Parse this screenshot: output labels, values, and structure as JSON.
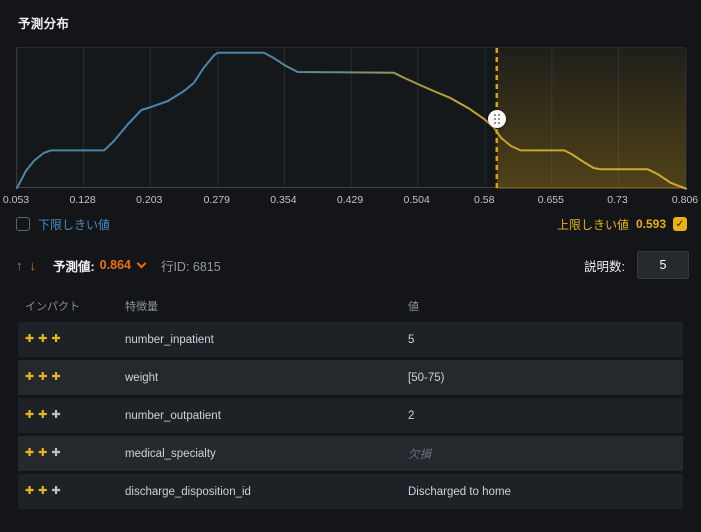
{
  "panel": {
    "title": "予測分布"
  },
  "chart_data": {
    "type": "area",
    "title": "予測分布",
    "xlabel": "",
    "ylabel": "",
    "xlim": [
      0.053,
      0.806
    ],
    "grid": true,
    "tick_labels": [
      "0.053",
      "0.128",
      "0.203",
      "0.279",
      "0.354",
      "0.429",
      "0.504",
      "0.58",
      "0.655",
      "0.73",
      "0.806"
    ],
    "ticks": [
      0.053,
      0.128,
      0.203,
      0.279,
      0.354,
      0.429,
      0.504,
      0.58,
      0.655,
      0.73,
      0.806
    ],
    "upper_threshold": 0.593,
    "points": [
      [
        0.053,
        0.007
      ],
      [
        0.063,
        0.128
      ],
      [
        0.072,
        0.199
      ],
      [
        0.083,
        0.255
      ],
      [
        0.091,
        0.274
      ],
      [
        0.151,
        0.274
      ],
      [
        0.162,
        0.34
      ],
      [
        0.178,
        0.461
      ],
      [
        0.193,
        0.56
      ],
      [
        0.204,
        0.582
      ],
      [
        0.223,
        0.624
      ],
      [
        0.241,
        0.695
      ],
      [
        0.252,
        0.752
      ],
      [
        0.263,
        0.858
      ],
      [
        0.275,
        0.95
      ],
      [
        0.279,
        0.967
      ],
      [
        0.331,
        0.967
      ],
      [
        0.342,
        0.929
      ],
      [
        0.354,
        0.879
      ],
      [
        0.369,
        0.83
      ],
      [
        0.477,
        0.825
      ],
      [
        0.489,
        0.787
      ],
      [
        0.504,
        0.745
      ],
      [
        0.522,
        0.695
      ],
      [
        0.541,
        0.645
      ],
      [
        0.561,
        0.574
      ],
      [
        0.579,
        0.496
      ],
      [
        0.59,
        0.433
      ],
      [
        0.598,
        0.362
      ],
      [
        0.609,
        0.305
      ],
      [
        0.62,
        0.274
      ],
      [
        0.669,
        0.274
      ],
      [
        0.677,
        0.248
      ],
      [
        0.691,
        0.191
      ],
      [
        0.702,
        0.149
      ],
      [
        0.71,
        0.14
      ],
      [
        0.763,
        0.14
      ],
      [
        0.774,
        0.106
      ],
      [
        0.789,
        0.043
      ],
      [
        0.806,
        0.002
      ]
    ],
    "colors": {
      "grid": "#272c31",
      "threshold": "#d9a410",
      "shade_top": "rgba(217,164,16,0.05)",
      "shade_bottom": "rgba(217,164,16,0.30)",
      "line_stops": [
        {
          "offset": 0.0,
          "color": "#4d85a9"
        },
        {
          "offset": 0.38,
          "color": "#4d85a9"
        },
        {
          "offset": 0.5,
          "color": "#6e8e7a"
        },
        {
          "offset": 0.58,
          "color": "#9f9a4d"
        },
        {
          "offset": 0.66,
          "color": "#c3a233"
        },
        {
          "offset": 1.0,
          "color": "#d4ab30"
        }
      ]
    }
  },
  "thresholds": {
    "lower_label": "下限しきい値",
    "lower_checked": false,
    "upper_label": "上限しきい値",
    "upper_value": "0.593",
    "upper_checked": true,
    "check_glyph": "✓"
  },
  "prediction": {
    "up_arrow": "↑",
    "down_arrow": "↓",
    "label": "予測値:",
    "value": "0.864",
    "chevron_icon": "chevron-down",
    "row_id": "行ID: 6815"
  },
  "explanations": {
    "label": "説明数:",
    "value": "5"
  },
  "table": {
    "headers": {
      "impact": "インパクト",
      "feature": "特徴量",
      "value": "値"
    },
    "plus_glyph": "✚",
    "impact_colors": {
      "strong": "#e9b71d",
      "weak": "#bfc3c6"
    },
    "rows": [
      {
        "impact": [
          "strong",
          "strong",
          "strong"
        ],
        "feature": "number_inpatient",
        "value": "5",
        "missing": false
      },
      {
        "impact": [
          "strong",
          "strong",
          "strong"
        ],
        "feature": "weight",
        "value": "[50-75)",
        "missing": false
      },
      {
        "impact": [
          "strong",
          "strong",
          "weak"
        ],
        "feature": "number_outpatient",
        "value": "2",
        "missing": false
      },
      {
        "impact": [
          "strong",
          "strong",
          "weak"
        ],
        "feature": "medical_specialty",
        "value": "欠損",
        "missing": true
      },
      {
        "impact": [
          "strong",
          "strong",
          "weak"
        ],
        "feature": "discharge_disposition_id",
        "value": "Discharged to home",
        "missing": false
      }
    ]
  }
}
